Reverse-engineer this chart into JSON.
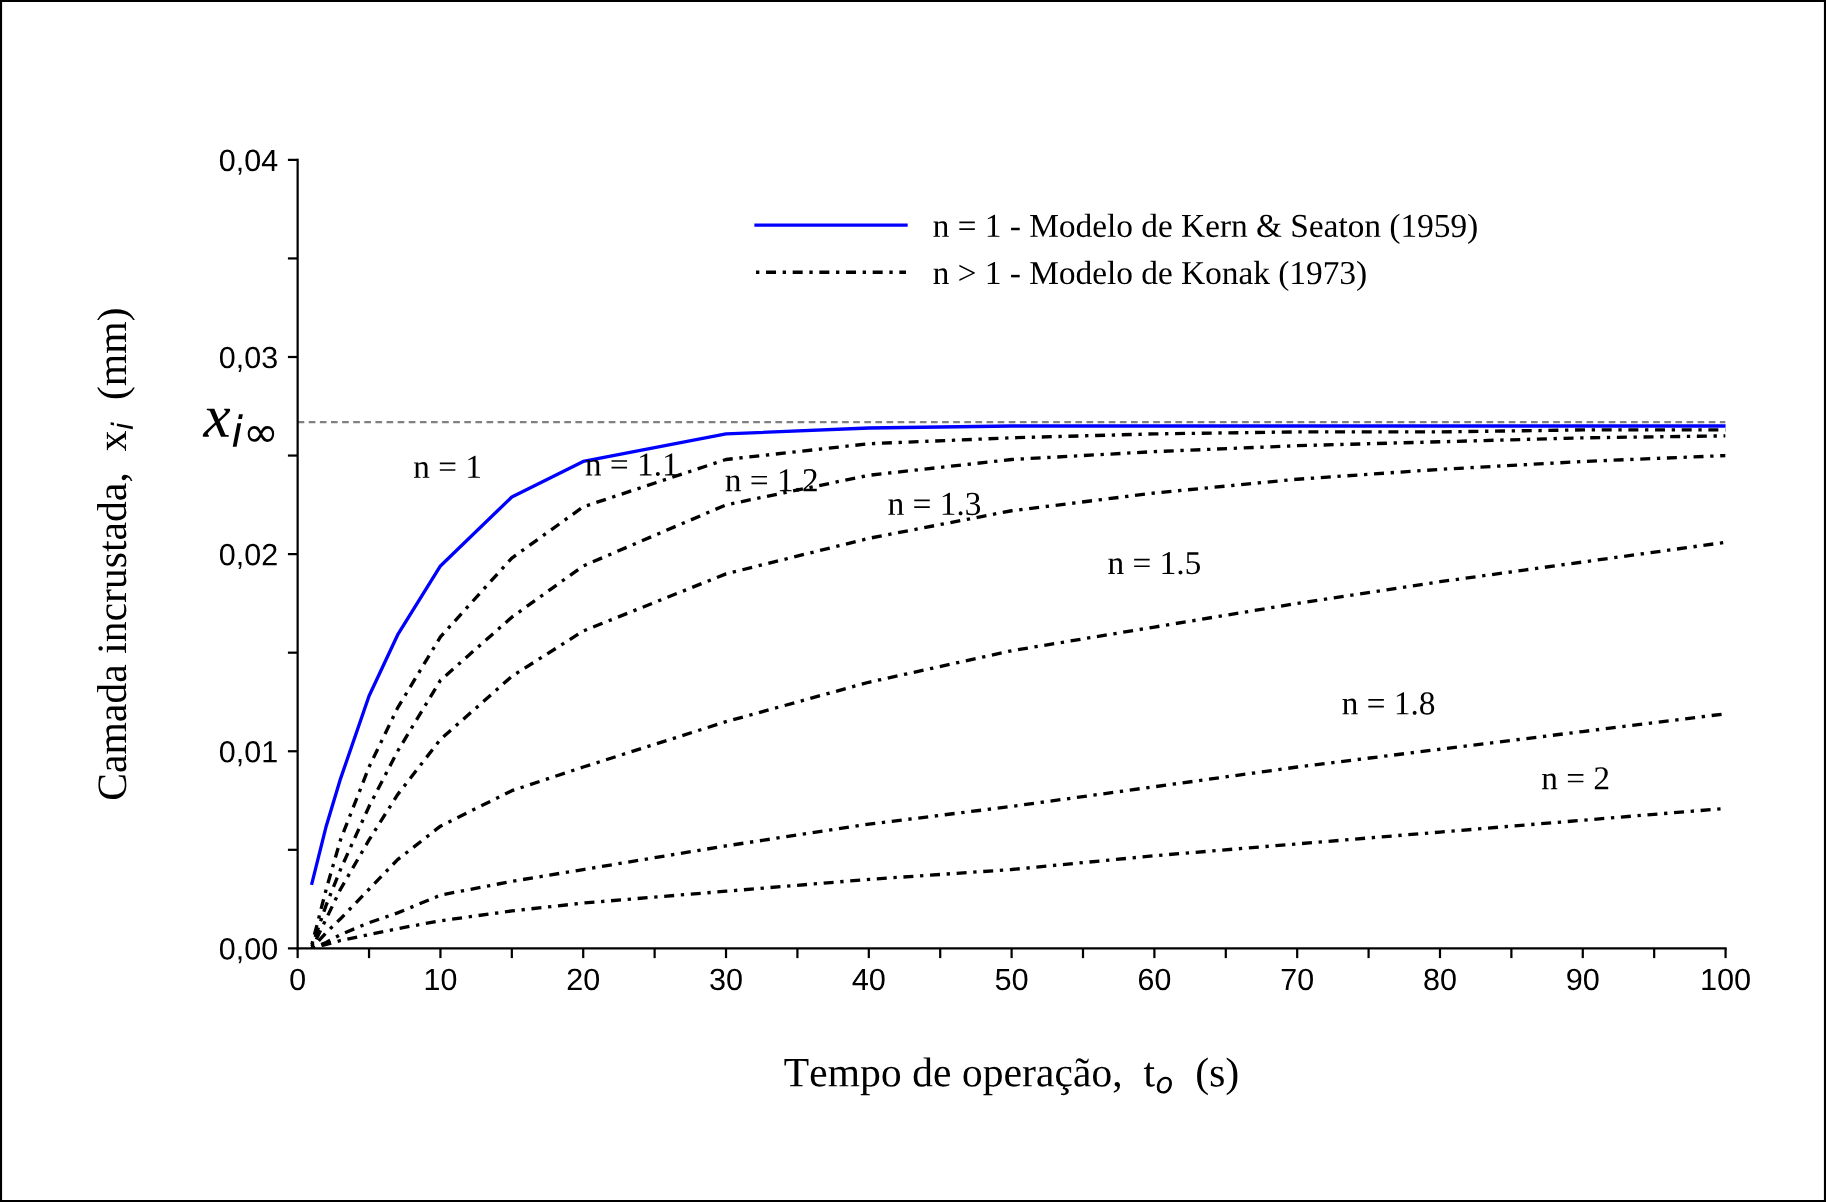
{
  "chart_data": {
    "type": "line",
    "xlabel": "Tempo de operação,  t$_{o}$  (s)",
    "ylabel": "Camada incrustada,  x$_{i}$  (mm)",
    "x": [
      1,
      2,
      3,
      5,
      7,
      10,
      15,
      20,
      30,
      40,
      50,
      60,
      70,
      80,
      90,
      100
    ],
    "series": [
      {
        "name": "n = 1 - Modelo de Kern & Seaton (1959)",
        "color": "#0000ff",
        "line_style": "solid",
        "values": [
          0.0033,
          0.0062,
          0.0086,
          0.0128,
          0.0159,
          0.0194,
          0.0229,
          0.0247,
          0.0261,
          0.0264,
          0.0265,
          0.0265,
          0.0265,
          0.0265,
          0.0265,
          0.0265
        ]
      },
      {
        "name": "n > 1 - Modelo de Konak (1973)",
        "color": "#000000",
        "line_style": "dotted",
        "values": [
          0.0002,
          0.003,
          0.0055,
          0.0092,
          0.0122,
          0.0158,
          0.0198,
          0.0224,
          0.0248,
          0.0256,
          0.0259,
          0.0261,
          0.0262,
          0.0262,
          0.0263,
          0.0263
        ]
      },
      {
        "color": "#000000",
        "line_style": "dotted",
        "values": [
          0.0001,
          0.0022,
          0.004,
          0.0072,
          0.01,
          0.0136,
          0.0168,
          0.0194,
          0.0225,
          0.024,
          0.0248,
          0.0252,
          0.0255,
          0.0257,
          0.0259,
          0.026
        ]
      },
      {
        "color": "#000000",
        "line_style": "dotted",
        "values": [
          0.0,
          0.0015,
          0.003,
          0.0055,
          0.0078,
          0.0106,
          0.0138,
          0.0161,
          0.019,
          0.0208,
          0.0222,
          0.0231,
          0.0238,
          0.0243,
          0.0247,
          0.025
        ]
      },
      {
        "color": "#000000",
        "line_style": "dotted",
        "values": [
          0.0,
          0.0008,
          0.0015,
          0.003,
          0.0045,
          0.0062,
          0.008,
          0.0092,
          0.0115,
          0.0135,
          0.0151,
          0.0163,
          0.0175,
          0.0186,
          0.0196,
          0.0206
        ]
      },
      {
        "color": "#000000",
        "line_style": "dotted",
        "values": [
          0.0,
          0.0003,
          0.0007,
          0.0013,
          0.0018,
          0.0027,
          0.0034,
          0.004,
          0.0052,
          0.0063,
          0.0072,
          0.0082,
          0.0092,
          0.0101,
          0.011,
          0.0119
        ]
      },
      {
        "color": "#000000",
        "line_style": "dotted",
        "values": [
          0.0,
          0.0002,
          0.0004,
          0.0007,
          0.001,
          0.0014,
          0.0019,
          0.0023,
          0.0029,
          0.0035,
          0.004,
          0.0047,
          0.0053,
          0.0059,
          0.0065,
          0.0071
        ]
      }
    ],
    "annotations": [
      "n = 1",
      "n = 1.1",
      "n = 1.2",
      "n = 1.3",
      "n = 1.5",
      "n = 1.8",
      "n = 2"
    ],
    "ref_lines": [
      {
        "axis": "y",
        "value": 0.0267,
        "label": "x$_{i∞}$",
        "color": "#808080",
        "line_style": "dashed"
      }
    ],
    "xlim": [
      0,
      100
    ],
    "xticks": [
      0,
      {
        "value": 5,
        "label": null
      },
      10,
      {
        "value": 15,
        "label": null
      },
      20,
      {
        "value": 25,
        "label": null
      },
      30,
      {
        "value": 35,
        "label": null
      },
      40,
      {
        "value": 45,
        "label": null
      },
      50,
      {
        "value": 55,
        "label": null
      },
      60,
      {
        "value": 65,
        "label": null
      },
      70,
      {
        "value": 75,
        "label": null
      },
      80,
      {
        "value": 85,
        "label": null
      },
      90,
      {
        "value": 95,
        "label": null
      },
      100
    ],
    "ylim": [
      0,
      0.04
    ],
    "yticks": [
      {
        "value": 0,
        "label": "0,00"
      },
      {
        "value": 0.005,
        "label": null
      },
      {
        "value": 0.01,
        "label": "0,01"
      },
      {
        "value": 0.015,
        "label": null
      },
      {
        "value": 0.02,
        "label": "0,02"
      },
      {
        "value": 0.025,
        "label": null
      },
      {
        "value": 0.03,
        "label": "0,03"
      },
      {
        "value": 0.035,
        "label": null
      },
      {
        "value": 0.04,
        "label": "0,04"
      }
    ],
    "grid": false,
    "legend": "top",
    "marker": "none"
  }
}
